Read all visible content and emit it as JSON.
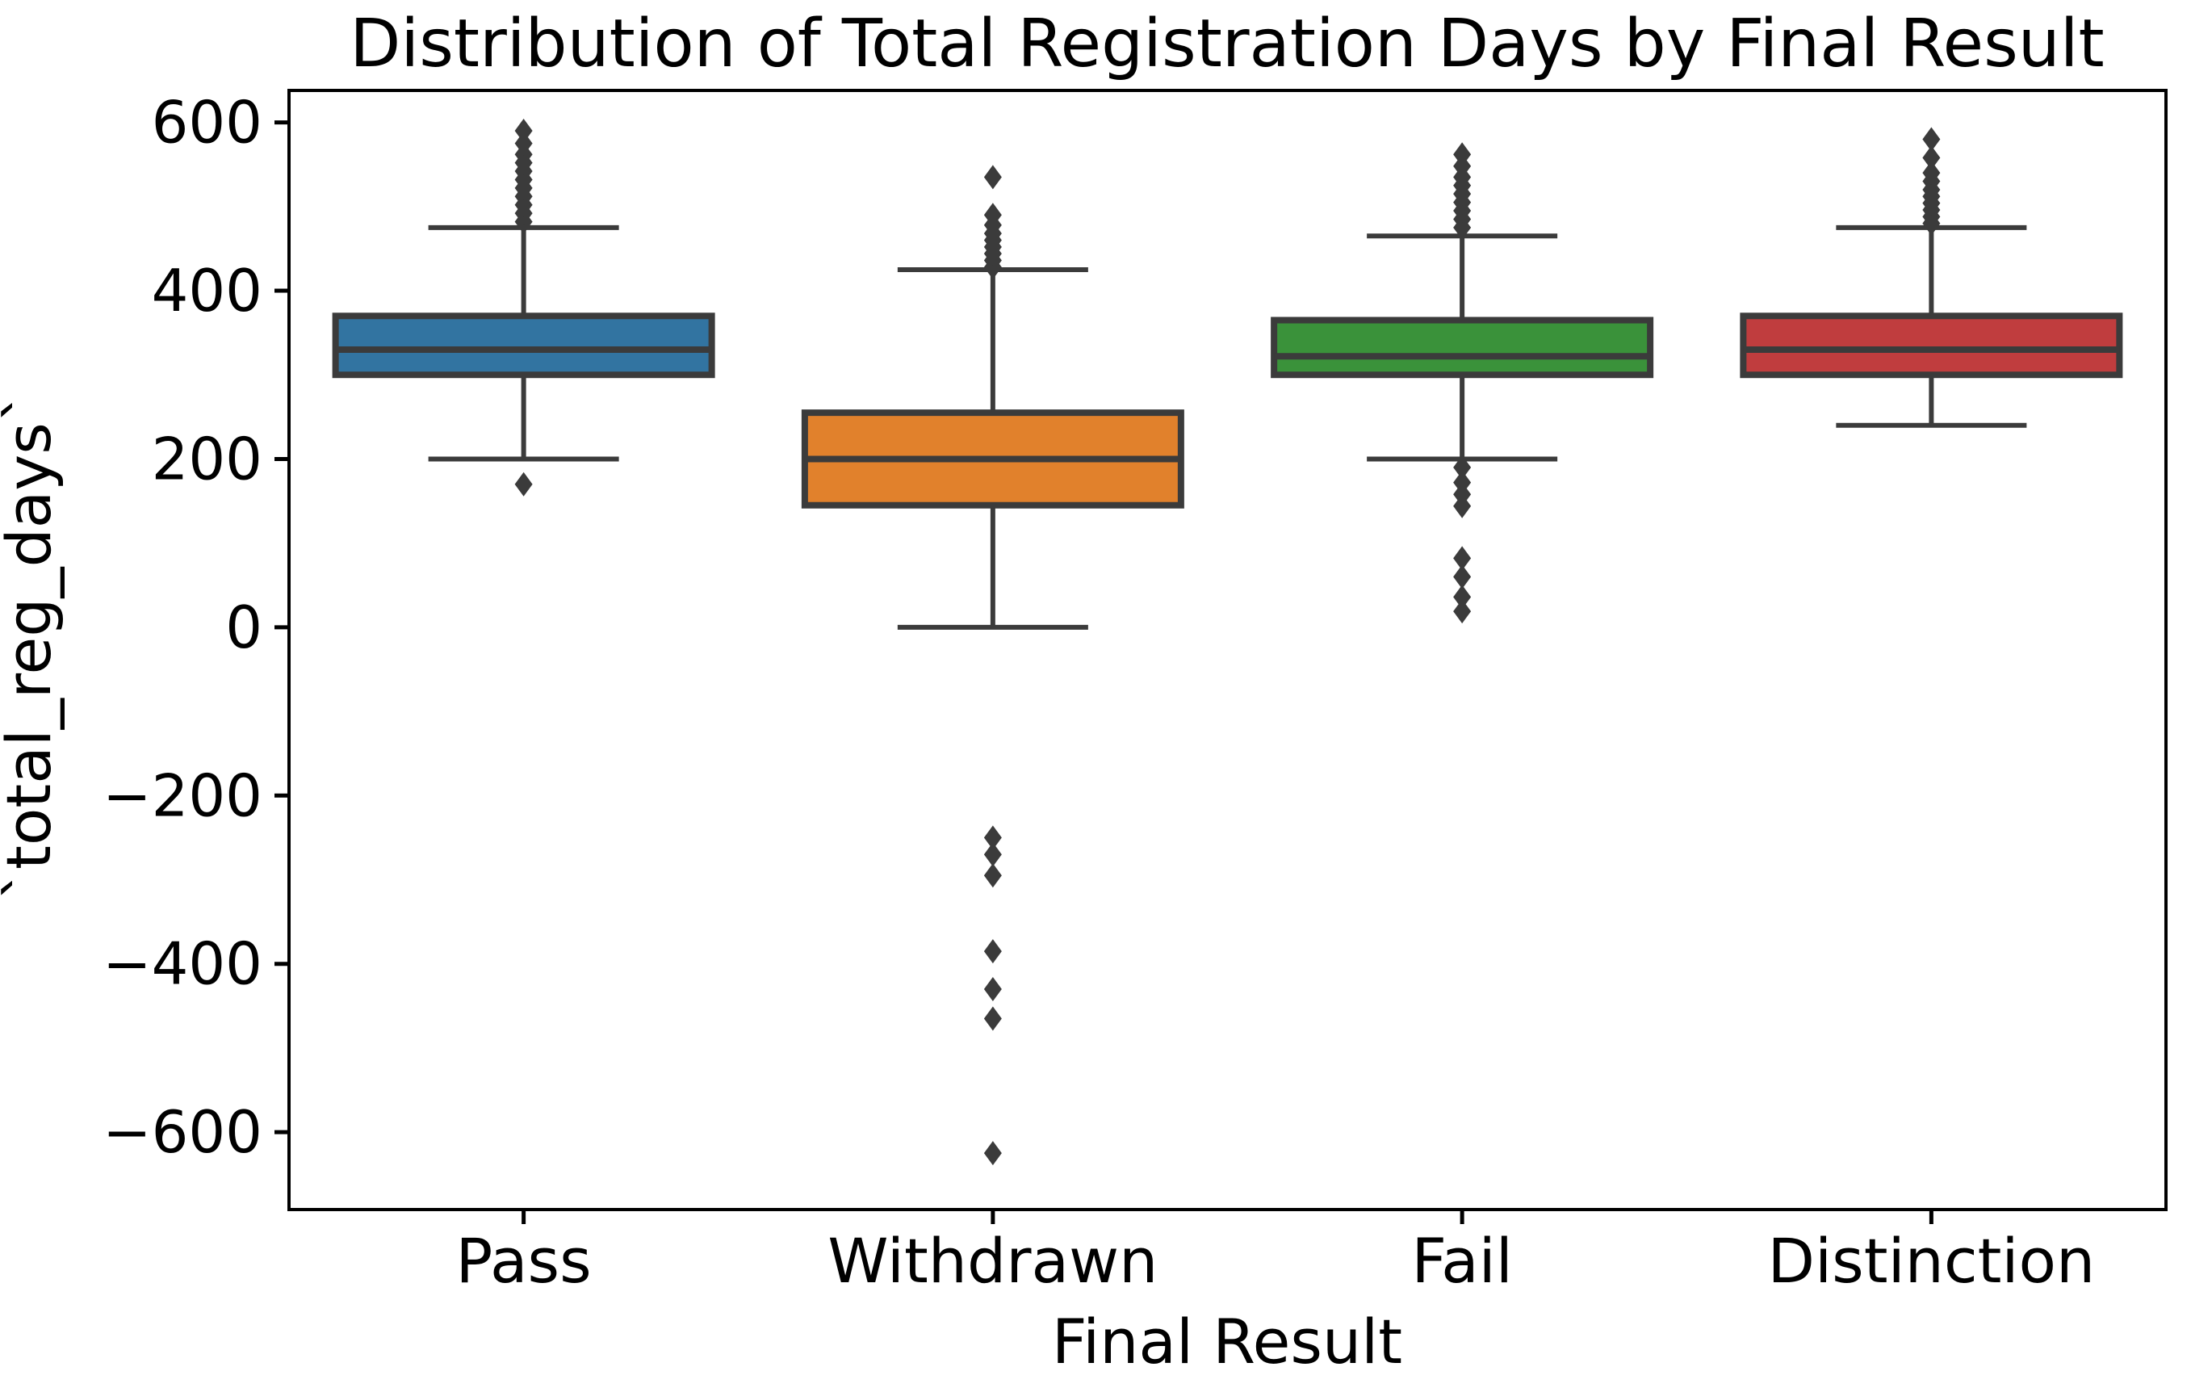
{
  "figure": {
    "background": "#ffffff",
    "spine_color": "#000000",
    "element_line_color": "#3b3b3b",
    "text_color": "#000000"
  },
  "chart_data": {
    "type": "box",
    "title": "Distribution of Total Registration Days by Final Result",
    "xlabel": "Final Result",
    "ylabel": "`total_reg_days`",
    "categories": [
      "Pass",
      "Withdrawn",
      "Fail",
      "Distinction"
    ],
    "y_ticks": [
      600,
      400,
      200,
      0,
      -200,
      -400,
      -600
    ],
    "y_tick_labels": [
      "600",
      "400",
      "200",
      "0",
      "−200",
      "−400",
      "−600"
    ],
    "ylim": [
      -692,
      638
    ],
    "grid": false,
    "legend": null,
    "box_colors": [
      "#3274a1",
      "#e1812c",
      "#3a923a",
      "#c03d3e"
    ],
    "boxes": [
      {
        "category": "Pass",
        "color": "#3274a1",
        "whisker_low": 200,
        "q1": 300,
        "median": 330,
        "q3": 370,
        "whisker_high": 475,
        "outliers_low": [
          170
        ],
        "outliers_high": [
          482,
          492,
          502,
          512,
          522,
          532,
          542,
          552,
          562,
          575,
          590
        ]
      },
      {
        "category": "Withdrawn",
        "color": "#e1812c",
        "whisker_low": 0,
        "q1": 145,
        "median": 200,
        "q3": 255,
        "whisker_high": 425,
        "outliers_low": [
          -250,
          -270,
          -295,
          -385,
          -430,
          -465,
          -625
        ],
        "outliers_high": [
          428,
          436,
          444,
          452,
          460,
          468,
          478,
          490,
          535
        ]
      },
      {
        "category": "Fail",
        "color": "#3a923a",
        "whisker_low": 200,
        "q1": 300,
        "median": 322,
        "q3": 365,
        "whisker_high": 465,
        "outliers_low": [
          190,
          172,
          158,
          144,
          82,
          60,
          36,
          19
        ],
        "outliers_high": [
          475,
          485,
          495,
          505,
          515,
          525,
          535,
          548,
          562
        ]
      },
      {
        "category": "Distinction",
        "color": "#c03d3e",
        "whisker_low": 240,
        "q1": 300,
        "median": 330,
        "q3": 370,
        "whisker_high": 475,
        "outliers_low": [],
        "outliers_high": [
          480,
          488,
          496,
          504,
          512,
          520,
          530,
          540,
          558,
          580
        ]
      }
    ]
  }
}
